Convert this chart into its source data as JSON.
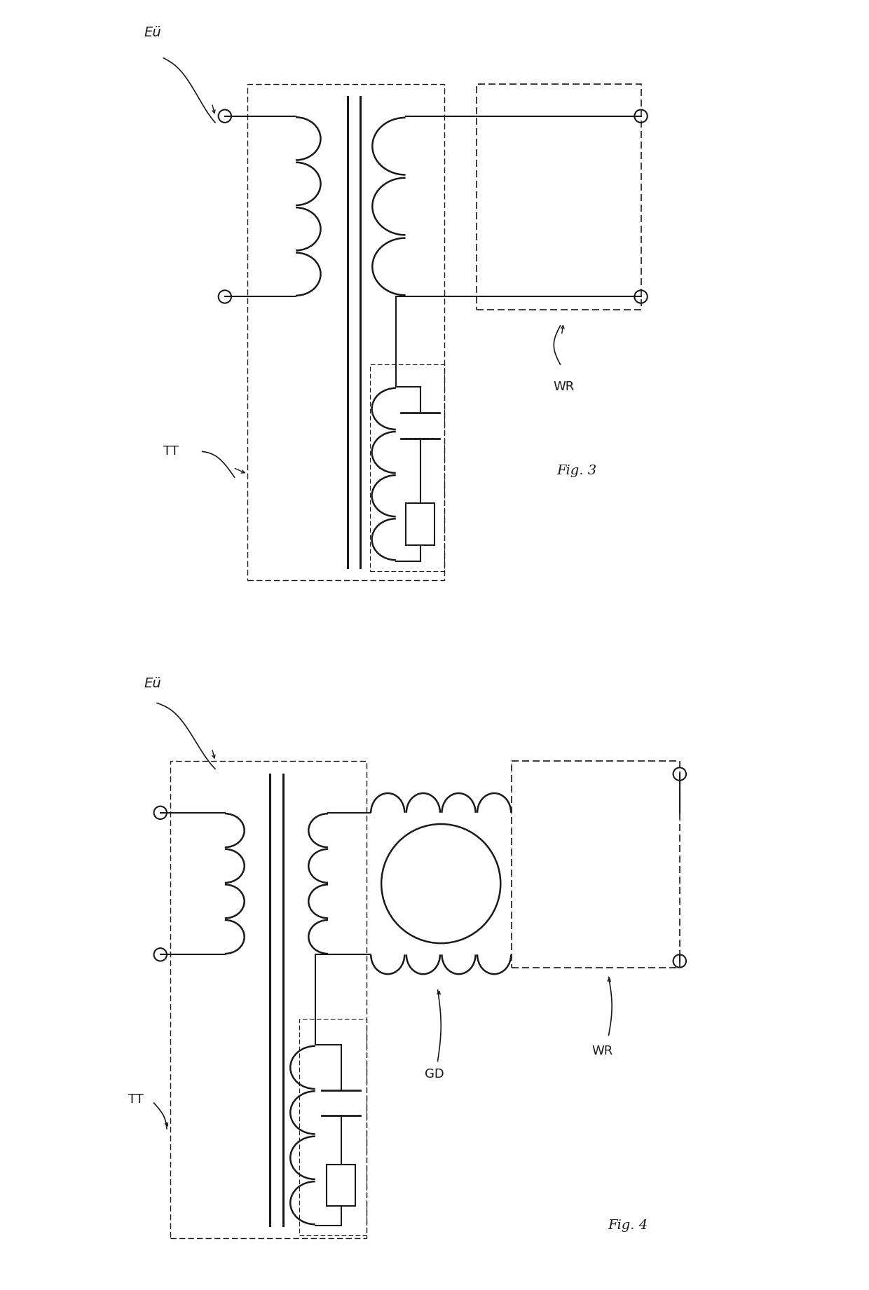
{
  "fig_width": 12.4,
  "fig_height": 18.41,
  "bg_color": "#ffffff",
  "line_color": "#1a1a1a",
  "fig3": {
    "label_eu": "Eü",
    "label_tt": "TT",
    "label_wr": "WR",
    "label_fig": "Fig. 3"
  },
  "fig4": {
    "label_eu": "Eü",
    "label_tt": "TT",
    "label_wr": "WR",
    "label_gd": "GD",
    "label_fig": "Fig. 4"
  }
}
